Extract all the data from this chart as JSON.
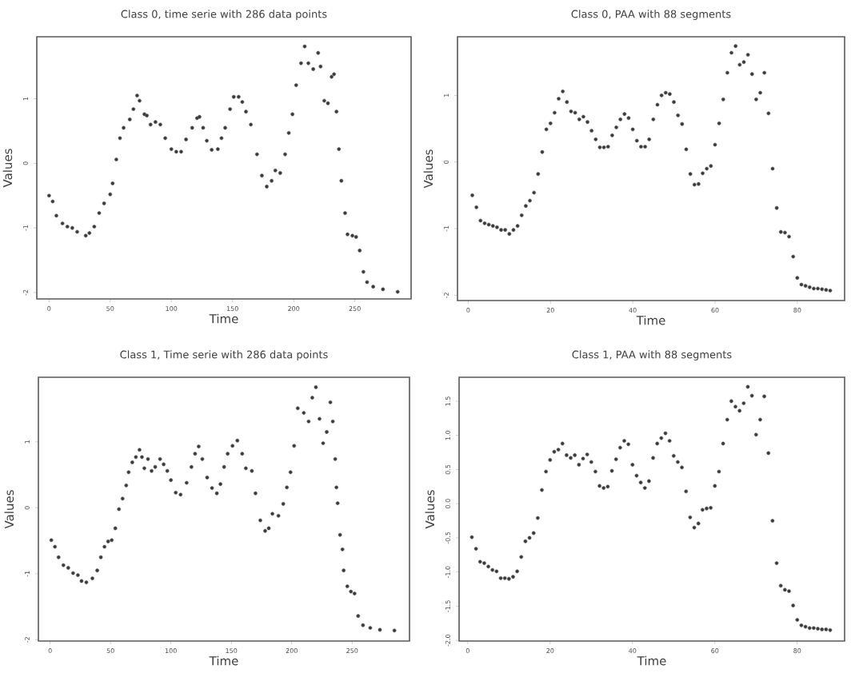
{
  "chart_data": [
    {
      "type": "scatter",
      "title": "Class 0, time serie with 286 data points",
      "xlabel": "Time",
      "ylabel": "Values",
      "color": "#3a3a3a",
      "marker": "circle",
      "xlim": [
        -10,
        296
      ],
      "ylim": [
        -2.1,
        1.96
      ],
      "xticks": [
        0,
        50,
        100,
        150,
        200,
        250
      ],
      "yticks": [
        -2,
        -1,
        0,
        1
      ],
      "x": [
        0,
        3,
        6,
        11,
        15,
        19,
        23,
        30,
        33,
        37,
        41,
        45,
        50,
        52,
        55,
        58,
        61,
        66,
        69,
        72,
        74,
        78,
        80,
        83,
        87,
        91,
        95,
        100,
        104,
        108,
        112,
        117,
        121,
        123,
        126,
        129,
        133,
        138,
        141,
        144,
        148,
        151,
        155,
        158,
        161,
        165,
        170,
        174,
        178,
        182,
        185,
        189,
        193,
        196,
        199,
        202,
        206,
        209,
        212,
        216,
        220,
        222,
        225,
        228,
        231,
        233,
        235,
        237,
        239,
        242,
        244,
        248,
        251,
        254,
        257,
        260,
        265,
        273,
        285
      ],
      "values": [
        -0.5,
        -0.59,
        -0.81,
        -0.93,
        -0.98,
        -1.0,
        -1.06,
        -1.12,
        -1.08,
        -0.98,
        -0.77,
        -0.62,
        -0.48,
        -0.31,
        0.06,
        0.39,
        0.55,
        0.68,
        0.84,
        1.05,
        0.97,
        0.76,
        0.74,
        0.6,
        0.64,
        0.6,
        0.39,
        0.22,
        0.18,
        0.18,
        0.37,
        0.55,
        0.7,
        0.72,
        0.55,
        0.35,
        0.21,
        0.22,
        0.39,
        0.55,
        0.84,
        1.03,
        1.03,
        0.95,
        0.8,
        0.6,
        0.14,
        -0.19,
        -0.36,
        -0.27,
        -0.11,
        -0.15,
        0.14,
        0.47,
        0.76,
        1.21,
        1.55,
        1.81,
        1.55,
        1.46,
        1.71,
        1.5,
        0.97,
        0.93,
        1.34,
        1.38,
        0.8,
        0.22,
        -0.27,
        -0.77,
        -1.1,
        -1.12,
        -1.14,
        -1.35,
        -1.68,
        -1.84,
        -1.91,
        -1.95,
        -1.99
      ]
    },
    {
      "type": "scatter",
      "title": "Class 0, PAA with 88 segments",
      "xlabel": "Time",
      "ylabel": "Values",
      "color": "#3a3a3a",
      "marker": "circle",
      "xlim": [
        -2.6,
        91.5
      ],
      "ylim": [
        -2.08,
        1.88
      ],
      "xticks": [
        0,
        20,
        40,
        60,
        80
      ],
      "yticks": [
        -2,
        -1,
        0,
        1
      ],
      "x": [
        1,
        2,
        3,
        4,
        5,
        6,
        7,
        8,
        9,
        10,
        11,
        12,
        13,
        14,
        15,
        16,
        17,
        18,
        19,
        20,
        21,
        22,
        23,
        24,
        25,
        26,
        27,
        28,
        29,
        30,
        31,
        32,
        33,
        34,
        35,
        36,
        37,
        38,
        39,
        40,
        41,
        42,
        43,
        44,
        45,
        46,
        47,
        48,
        49,
        50,
        51,
        52,
        53,
        54,
        55,
        56,
        57,
        58,
        59,
        60,
        61,
        62,
        63,
        64,
        65,
        66,
        67,
        68,
        69,
        70,
        71,
        72,
        73,
        74,
        75,
        76,
        77,
        78,
        79,
        80,
        81,
        82,
        83,
        84,
        85,
        86,
        87,
        88
      ],
      "values": [
        -0.5,
        -0.68,
        -0.88,
        -0.92,
        -0.94,
        -0.96,
        -0.98,
        -1.02,
        -1.02,
        -1.08,
        -1.02,
        -0.96,
        -0.8,
        -0.66,
        -0.58,
        -0.46,
        -0.18,
        0.15,
        0.49,
        0.58,
        0.74,
        0.95,
        1.06,
        0.9,
        0.76,
        0.74,
        0.64,
        0.68,
        0.6,
        0.47,
        0.34,
        0.22,
        0.22,
        0.23,
        0.4,
        0.52,
        0.64,
        0.72,
        0.66,
        0.49,
        0.32,
        0.23,
        0.23,
        0.34,
        0.64,
        0.86,
        1.0,
        1.04,
        1.02,
        0.9,
        0.7,
        0.57,
        0.19,
        -0.18,
        -0.34,
        -0.33,
        -0.17,
        -0.1,
        -0.06,
        0.26,
        0.58,
        0.94,
        1.34,
        1.64,
        1.74,
        1.46,
        1.5,
        1.61,
        1.32,
        0.94,
        1.04,
        1.34,
        0.73,
        -0.1,
        -0.69,
        -1.05,
        -1.06,
        -1.12,
        -1.42,
        -1.74,
        -1.84,
        -1.86,
        -1.88,
        -1.9,
        -1.9,
        -1.91,
        -1.92,
        -1.93
      ]
    },
    {
      "type": "scatter",
      "title": "Class 1, Time serie with 286 data points",
      "xlabel": "Time",
      "ylabel": "Values",
      "color": "#3a3a3a",
      "marker": "circle",
      "xlim": [
        -9.7,
        297.5
      ],
      "ylim": [
        -2.02,
        1.98
      ],
      "xticks": [
        0,
        50,
        100,
        150,
        200,
        250
      ],
      "yticks": [
        -2,
        -1,
        0,
        1
      ],
      "x": [
        1,
        4,
        7,
        11,
        15,
        19,
        23,
        26,
        30,
        35,
        39,
        42,
        45,
        48,
        51,
        54,
        57,
        60,
        63,
        65,
        68,
        71,
        74,
        76,
        78,
        81,
        84,
        87,
        91,
        94,
        97,
        100,
        104,
        108,
        113,
        117,
        120,
        123,
        126,
        130,
        134,
        138,
        141,
        144,
        147,
        151,
        155,
        159,
        162,
        167,
        170,
        174,
        178,
        181,
        184,
        189,
        193,
        196,
        199,
        202,
        205,
        210,
        214,
        217,
        220,
        223,
        226,
        229,
        232,
        234,
        236,
        237,
        238,
        240,
        242,
        243,
        246,
        249,
        252,
        255,
        259,
        265,
        273,
        285
      ],
      "values": [
        -0.49,
        -0.59,
        -0.75,
        -0.87,
        -0.91,
        -0.99,
        -1.02,
        -1.11,
        -1.13,
        -1.07,
        -0.95,
        -0.75,
        -0.59,
        -0.51,
        -0.49,
        -0.31,
        -0.02,
        0.14,
        0.34,
        0.54,
        0.69,
        0.77,
        0.88,
        0.77,
        0.6,
        0.74,
        0.56,
        0.62,
        0.74,
        0.66,
        0.56,
        0.42,
        0.23,
        0.2,
        0.38,
        0.62,
        0.82,
        0.93,
        0.74,
        0.46,
        0.3,
        0.22,
        0.36,
        0.62,
        0.82,
        0.94,
        1.02,
        0.82,
        0.6,
        0.56,
        0.22,
        -0.19,
        -0.35,
        -0.31,
        -0.09,
        -0.12,
        0.06,
        0.31,
        0.54,
        0.94,
        1.51,
        1.44,
        1.31,
        1.67,
        1.83,
        1.35,
        0.98,
        1.15,
        1.6,
        1.31,
        0.74,
        0.31,
        0.07,
        -0.41,
        -0.63,
        -0.95,
        -1.19,
        -1.27,
        -1.3,
        -1.64,
        -1.78,
        -1.82,
        -1.85,
        -1.86
      ]
    },
    {
      "type": "scatter",
      "title": "Class 1, PAA with 88 segments",
      "xlabel": "Time",
      "ylabel": "Values",
      "color": "#3a3a3a",
      "marker": "circle",
      "xlim": [
        -2.1,
        91.5
      ],
      "ylim": [
        -2.01,
        1.85
      ],
      "xticks": [
        0,
        20,
        40,
        60,
        80
      ],
      "yticks": [
        {
          "value": -2,
          "label": "-2.0"
        },
        {
          "value": -1.5,
          "label": "-1.5"
        },
        {
          "value": -1,
          "label": "-1.0"
        },
        {
          "value": -0.5,
          "label": "-0.5"
        },
        {
          "value": 0,
          "label": "0.0"
        },
        {
          "value": 0.5,
          "label": "0.5"
        },
        {
          "value": 1,
          "label": "1.0"
        },
        {
          "value": 1.5,
          "label": "1.5"
        }
      ],
      "x": [
        1,
        2,
        3,
        4,
        5,
        6,
        7,
        8,
        9,
        10,
        11,
        12,
        13,
        14,
        15,
        16,
        17,
        18,
        19,
        20,
        21,
        22,
        23,
        24,
        25,
        26,
        27,
        28,
        29,
        30,
        31,
        32,
        33,
        34,
        35,
        36,
        37,
        38,
        39,
        40,
        41,
        42,
        43,
        44,
        45,
        46,
        47,
        48,
        49,
        50,
        51,
        52,
        53,
        54,
        55,
        56,
        57,
        58,
        59,
        60,
        61,
        62,
        63,
        64,
        65,
        66,
        67,
        68,
        69,
        70,
        71,
        72,
        73,
        74,
        75,
        76,
        77,
        78,
        79,
        80,
        81,
        82,
        83,
        84,
        85,
        86,
        87,
        88
      ],
      "values": [
        -0.49,
        -0.66,
        -0.85,
        -0.87,
        -0.92,
        -0.97,
        -0.99,
        -1.09,
        -1.09,
        -1.1,
        -1.07,
        -0.99,
        -0.78,
        -0.55,
        -0.5,
        -0.43,
        -0.21,
        0.2,
        0.47,
        0.64,
        0.76,
        0.79,
        0.88,
        0.71,
        0.67,
        0.71,
        0.57,
        0.66,
        0.72,
        0.61,
        0.47,
        0.26,
        0.23,
        0.25,
        0.48,
        0.65,
        0.82,
        0.92,
        0.87,
        0.57,
        0.41,
        0.31,
        0.23,
        0.33,
        0.67,
        0.88,
        0.96,
        1.03,
        0.92,
        0.7,
        0.61,
        0.53,
        0.18,
        -0.2,
        -0.35,
        -0.29,
        -0.09,
        -0.07,
        -0.06,
        0.26,
        0.47,
        0.88,
        1.23,
        1.5,
        1.42,
        1.36,
        1.47,
        1.71,
        1.58,
        1.01,
        1.23,
        1.57,
        0.74,
        -0.25,
        -0.87,
        -1.2,
        -1.26,
        -1.28,
        -1.49,
        -1.7,
        -1.78,
        -1.8,
        -1.82,
        -1.82,
        -1.83,
        -1.84,
        -1.84,
        -1.85
      ]
    }
  ]
}
